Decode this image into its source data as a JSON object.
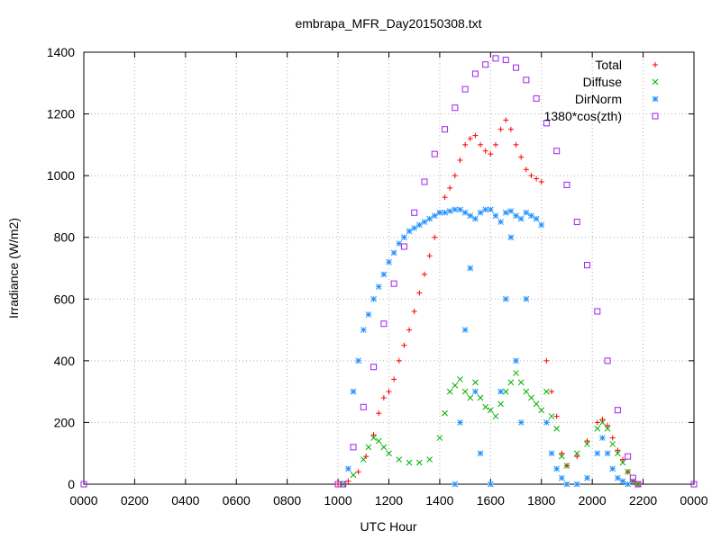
{
  "chart_data": {
    "type": "scatter",
    "title": "embrapa_MFR_Day20150308.txt",
    "xlabel": "UTC Hour",
    "ylabel": "Irradiance (W/m2)",
    "xlim": [
      0,
      2400
    ],
    "ylim": [
      0,
      1400
    ],
    "x_ticks": [
      "0000",
      "0200",
      "0400",
      "0600",
      "0800",
      "1000",
      "1200",
      "1400",
      "1600",
      "1800",
      "2000",
      "2200",
      "0000"
    ],
    "y_ticks": [
      "0",
      "200",
      "400",
      "600",
      "800",
      "1000",
      "1200",
      "1400"
    ],
    "grid": true,
    "legend_position": "top-right",
    "colors": {
      "Total": "#ff0000",
      "Diffuse": "#00b000",
      "DirNorm": "#1e90ff",
      "1380*cos(zth)": "#a020f0"
    },
    "series": [
      {
        "name": "Total",
        "marker": "plus",
        "points": [
          [
            1000,
            0
          ],
          [
            1040,
            10
          ],
          [
            1080,
            40
          ],
          [
            1110,
            90
          ],
          [
            1140,
            160
          ],
          [
            1160,
            230
          ],
          [
            1180,
            280
          ],
          [
            1200,
            300
          ],
          [
            1220,
            340
          ],
          [
            1240,
            400
          ],
          [
            1260,
            450
          ],
          [
            1280,
            500
          ],
          [
            1300,
            560
          ],
          [
            1320,
            620
          ],
          [
            1340,
            680
          ],
          [
            1360,
            740
          ],
          [
            1380,
            800
          ],
          [
            1400,
            880
          ],
          [
            1420,
            930
          ],
          [
            1440,
            960
          ],
          [
            1460,
            1000
          ],
          [
            1480,
            1050
          ],
          [
            1500,
            1100
          ],
          [
            1520,
            1120
          ],
          [
            1540,
            1130
          ],
          [
            1560,
            1100
          ],
          [
            1580,
            1080
          ],
          [
            1600,
            1070
          ],
          [
            1620,
            1100
          ],
          [
            1640,
            1150
          ],
          [
            1660,
            1180
          ],
          [
            1680,
            1150
          ],
          [
            1700,
            1100
          ],
          [
            1720,
            1060
          ],
          [
            1740,
            1020
          ],
          [
            1760,
            1000
          ],
          [
            1780,
            990
          ],
          [
            1800,
            980
          ],
          [
            1820,
            400
          ],
          [
            1840,
            300
          ],
          [
            1860,
            220
          ],
          [
            1880,
            100
          ],
          [
            1900,
            60
          ],
          [
            1940,
            90
          ],
          [
            1980,
            140
          ],
          [
            2020,
            200
          ],
          [
            2040,
            210
          ],
          [
            2060,
            190
          ],
          [
            2080,
            150
          ],
          [
            2100,
            110
          ],
          [
            2120,
            80
          ],
          [
            2140,
            40
          ],
          [
            2160,
            10
          ],
          [
            2180,
            0
          ]
        ]
      },
      {
        "name": "Diffuse",
        "marker": "x",
        "points": [
          [
            1020,
            0
          ],
          [
            1060,
            30
          ],
          [
            1100,
            80
          ],
          [
            1120,
            120
          ],
          [
            1140,
            150
          ],
          [
            1160,
            140
          ],
          [
            1180,
            120
          ],
          [
            1200,
            100
          ],
          [
            1240,
            80
          ],
          [
            1280,
            70
          ],
          [
            1320,
            70
          ],
          [
            1360,
            80
          ],
          [
            1400,
            150
          ],
          [
            1420,
            230
          ],
          [
            1440,
            300
          ],
          [
            1460,
            320
          ],
          [
            1480,
            340
          ],
          [
            1500,
            300
          ],
          [
            1520,
            280
          ],
          [
            1540,
            330
          ],
          [
            1560,
            280
          ],
          [
            1580,
            250
          ],
          [
            1600,
            240
          ],
          [
            1620,
            220
          ],
          [
            1640,
            260
          ],
          [
            1660,
            300
          ],
          [
            1680,
            330
          ],
          [
            1700,
            360
          ],
          [
            1720,
            330
          ],
          [
            1740,
            300
          ],
          [
            1760,
            280
          ],
          [
            1780,
            260
          ],
          [
            1800,
            240
          ],
          [
            1820,
            300
          ],
          [
            1840,
            220
          ],
          [
            1860,
            180
          ],
          [
            1880,
            90
          ],
          [
            1900,
            60
          ],
          [
            1940,
            100
          ],
          [
            1980,
            130
          ],
          [
            2020,
            180
          ],
          [
            2040,
            200
          ],
          [
            2060,
            180
          ],
          [
            2080,
            130
          ],
          [
            2100,
            100
          ],
          [
            2120,
            70
          ],
          [
            2140,
            40
          ],
          [
            2160,
            10
          ],
          [
            2180,
            0
          ]
        ]
      },
      {
        "name": "DirNorm",
        "marker": "asterisk",
        "points": [
          [
            1040,
            50
          ],
          [
            1060,
            300
          ],
          [
            1080,
            400
          ],
          [
            1100,
            500
          ],
          [
            1120,
            550
          ],
          [
            1140,
            600
          ],
          [
            1160,
            640
          ],
          [
            1180,
            680
          ],
          [
            1200,
            720
          ],
          [
            1220,
            750
          ],
          [
            1240,
            780
          ],
          [
            1260,
            800
          ],
          [
            1280,
            820
          ],
          [
            1300,
            830
          ],
          [
            1320,
            840
          ],
          [
            1340,
            850
          ],
          [
            1360,
            860
          ],
          [
            1380,
            870
          ],
          [
            1400,
            880
          ],
          [
            1420,
            880
          ],
          [
            1440,
            885
          ],
          [
            1460,
            890
          ],
          [
            1480,
            890
          ],
          [
            1500,
            880
          ],
          [
            1520,
            870
          ],
          [
            1540,
            860
          ],
          [
            1560,
            880
          ],
          [
            1580,
            890
          ],
          [
            1600,
            890
          ],
          [
            1620,
            870
          ],
          [
            1640,
            850
          ],
          [
            1660,
            880
          ],
          [
            1680,
            885
          ],
          [
            1700,
            870
          ],
          [
            1720,
            860
          ],
          [
            1740,
            880
          ],
          [
            1760,
            870
          ],
          [
            1780,
            860
          ],
          [
            1800,
            840
          ],
          [
            1820,
            200
          ],
          [
            1840,
            100
          ],
          [
            1860,
            50
          ],
          [
            1880,
            20
          ],
          [
            1900,
            0
          ],
          [
            1940,
            0
          ],
          [
            1980,
            20
          ],
          [
            2020,
            100
          ],
          [
            2040,
            150
          ],
          [
            2060,
            100
          ],
          [
            2080,
            50
          ],
          [
            2100,
            20
          ],
          [
            2120,
            10
          ],
          [
            2140,
            0
          ],
          [
            1460,
            0
          ],
          [
            1480,
            200
          ],
          [
            1500,
            500
          ],
          [
            1520,
            700
          ],
          [
            1540,
            300
          ],
          [
            1560,
            100
          ],
          [
            1600,
            0
          ],
          [
            1640,
            300
          ],
          [
            1660,
            600
          ],
          [
            1680,
            800
          ],
          [
            1700,
            400
          ],
          [
            1720,
            200
          ],
          [
            1740,
            600
          ]
        ]
      },
      {
        "name": "1380*cos(zth)",
        "marker": "square",
        "points": [
          [
            0,
            0
          ],
          [
            1000,
            0
          ],
          [
            1020,
            0
          ],
          [
            1060,
            120
          ],
          [
            1100,
            250
          ],
          [
            1140,
            380
          ],
          [
            1180,
            520
          ],
          [
            1220,
            650
          ],
          [
            1260,
            770
          ],
          [
            1300,
            880
          ],
          [
            1340,
            980
          ],
          [
            1380,
            1070
          ],
          [
            1420,
            1150
          ],
          [
            1460,
            1220
          ],
          [
            1500,
            1280
          ],
          [
            1540,
            1330
          ],
          [
            1580,
            1360
          ],
          [
            1620,
            1380
          ],
          [
            1660,
            1375
          ],
          [
            1700,
            1350
          ],
          [
            1740,
            1310
          ],
          [
            1780,
            1250
          ],
          [
            1820,
            1170
          ],
          [
            1860,
            1080
          ],
          [
            1900,
            970
          ],
          [
            1940,
            850
          ],
          [
            1980,
            710
          ],
          [
            2020,
            560
          ],
          [
            2060,
            400
          ],
          [
            2100,
            240
          ],
          [
            2140,
            90
          ],
          [
            2160,
            20
          ],
          [
            2180,
            0
          ],
          [
            2400,
            0
          ]
        ]
      }
    ]
  }
}
